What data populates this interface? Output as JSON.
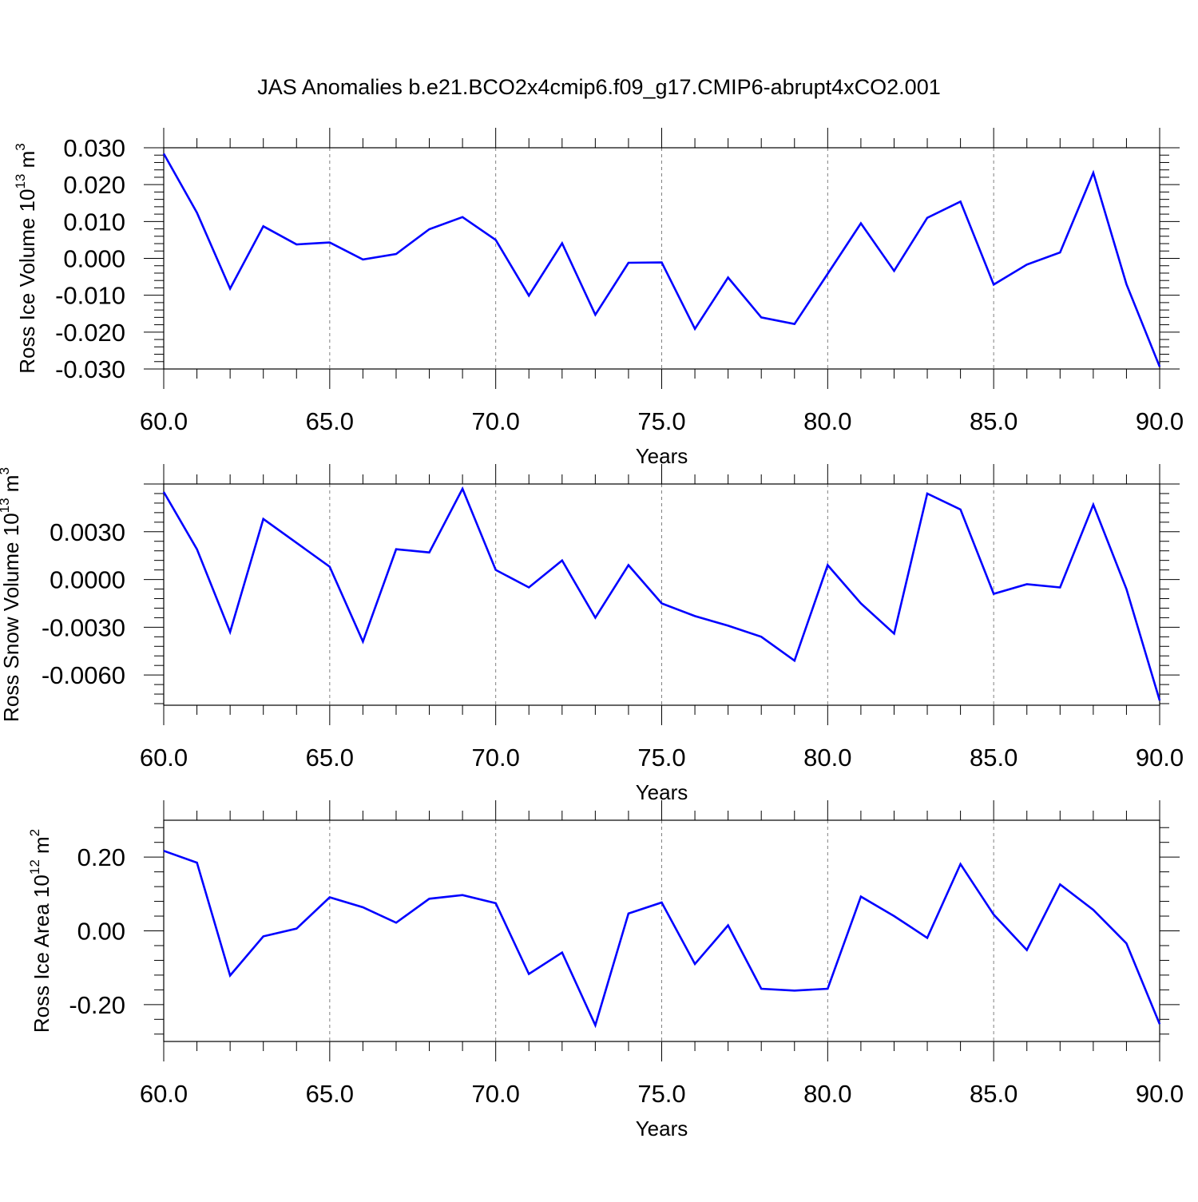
{
  "figure": {
    "title": "JAS Anomalies b.e21.BCO2x4cmip6.f09_g17.CMIP6-abrupt4xCO2.001",
    "line_color": "#0000ff",
    "grid_color": "#808080"
  },
  "chart_data": [
    {
      "type": "line",
      "ylabel": "Ross Ice Volume 10",
      "ylabel_exp": "13",
      "ylabel_unit": " m",
      "ylabel_unit_exp": "3",
      "xlabel": "Years",
      "xlim": [
        60,
        90
      ],
      "ylim": [
        -0.03,
        0.03
      ],
      "yticks": [
        -0.03,
        -0.02,
        -0.01,
        0.0,
        0.01,
        0.02,
        0.03
      ],
      "ytick_labels": [
        "-0.030",
        "-0.020",
        "-0.010",
        "0.000",
        "0.010",
        "0.020",
        "0.030"
      ],
      "xticks": [
        60,
        65,
        70,
        75,
        80,
        85,
        90
      ],
      "xtick_labels": [
        "60.0",
        "65.0",
        "70.0",
        "75.0",
        "80.0",
        "85.0",
        "90.0"
      ],
      "x": [
        60,
        61,
        62,
        63,
        64,
        65,
        66,
        67,
        68,
        69,
        70,
        71,
        72,
        73,
        74,
        75,
        76,
        77,
        78,
        79,
        80,
        81,
        82,
        83,
        84,
        85,
        86,
        87,
        88,
        89,
        90
      ],
      "series": [
        {
          "values": [
            0.0284,
            0.0124,
            -0.0082,
            0.0087,
            0.0038,
            0.0043,
            -0.0003,
            0.0012,
            0.0079,
            0.0112,
            0.005,
            -0.0101,
            0.0041,
            -0.0153,
            -0.0012,
            -0.0011,
            -0.0191,
            -0.0052,
            -0.016,
            -0.0178,
            -0.0042,
            0.0095,
            -0.0034,
            0.011,
            0.0154,
            -0.0071,
            -0.0017,
            0.0016,
            0.0232,
            -0.007,
            -0.0294
          ]
        }
      ]
    },
    {
      "type": "line",
      "ylabel": "Ross Snow Volume 10",
      "ylabel_exp": "13",
      "ylabel_unit": " m",
      "ylabel_unit_exp": "3",
      "xlabel": "Years",
      "xlim": [
        60,
        90
      ],
      "ylim": [
        -0.0079,
        0.006
      ],
      "yticks": [
        -0.006,
        -0.003,
        0.0,
        0.003
      ],
      "ytick_labels": [
        "-0.0060",
        "-0.0030",
        "0.0000",
        "0.0030"
      ],
      "xticks": [
        60,
        65,
        70,
        75,
        80,
        85,
        90
      ],
      "xtick_labels": [
        "60.0",
        "65.0",
        "70.0",
        "75.0",
        "80.0",
        "85.0",
        "90.0"
      ],
      "x": [
        60,
        61,
        62,
        63,
        64,
        65,
        66,
        67,
        68,
        69,
        70,
        71,
        72,
        73,
        74,
        75,
        76,
        77,
        78,
        79,
        80,
        81,
        82,
        83,
        84,
        85,
        86,
        87,
        88,
        89,
        90
      ],
      "series": [
        {
          "values": [
            0.0055,
            0.0019,
            -0.0033,
            0.0038,
            0.0023,
            0.0008,
            -0.0039,
            0.0019,
            0.0017,
            0.0057,
            0.0006,
            -0.0005,
            0.0012,
            -0.0024,
            0.0009,
            -0.0015,
            -0.0023,
            -0.0029,
            -0.0036,
            -0.0051,
            0.0009,
            -0.0015,
            -0.0034,
            0.0054,
            0.0044,
            -0.0009,
            -0.0003,
            -0.0005,
            0.0047,
            -0.0006,
            -0.0076
          ]
        }
      ]
    },
    {
      "type": "line",
      "ylabel": "Ross Ice Area 10",
      "ylabel_exp": "12",
      "ylabel_unit": " m",
      "ylabel_unit_exp": "2",
      "xlabel": "Years",
      "xlim": [
        60,
        90
      ],
      "ylim": [
        -0.3,
        0.3
      ],
      "yticks": [
        -0.2,
        0.0,
        0.2
      ],
      "ytick_labels": [
        "-0.20",
        "0.00",
        "0.20"
      ],
      "xticks": [
        60,
        65,
        70,
        75,
        80,
        85,
        90
      ],
      "xtick_labels": [
        "60.0",
        "65.0",
        "70.0",
        "75.0",
        "80.0",
        "85.0",
        "90.0"
      ],
      "x": [
        60,
        61,
        62,
        63,
        64,
        65,
        66,
        67,
        68,
        69,
        70,
        71,
        72,
        73,
        74,
        75,
        76,
        77,
        78,
        79,
        80,
        81,
        82,
        83,
        84,
        85,
        86,
        87,
        88,
        89,
        90
      ],
      "series": [
        {
          "values": [
            0.217,
            0.185,
            -0.121,
            -0.015,
            0.006,
            0.091,
            0.064,
            0.022,
            0.087,
            0.097,
            0.075,
            -0.117,
            -0.059,
            -0.256,
            0.047,
            0.077,
            -0.09,
            0.015,
            -0.157,
            -0.162,
            -0.157,
            0.093,
            0.04,
            -0.019,
            0.181,
            0.044,
            -0.052,
            0.126,
            0.057,
            -0.034,
            -0.253
          ]
        }
      ]
    }
  ]
}
